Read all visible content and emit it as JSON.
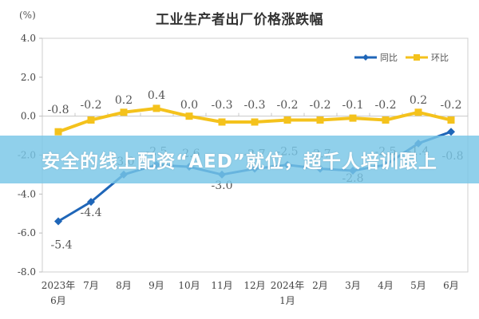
{
  "chart_data": {
    "type": "line",
    "title": "工业生产者出厂价格涨跌幅",
    "ylabel": "(%)",
    "xlabel": "",
    "ylim": [
      -8.0,
      4.0
    ],
    "yticks": [
      "4.0",
      "2.0",
      "0.0",
      "-2.0",
      "-4.0",
      "-6.0",
      "-8.0"
    ],
    "categories": [
      [
        "2023年",
        "6月"
      ],
      [
        "7月"
      ],
      [
        "8月"
      ],
      [
        "9月"
      ],
      [
        "10月"
      ],
      [
        "11月"
      ],
      [
        "12月"
      ],
      [
        "2024年",
        "1月"
      ],
      [
        "2月"
      ],
      [
        "3月"
      ],
      [
        "4月"
      ],
      [
        "5月"
      ],
      [
        "6月"
      ]
    ],
    "series": [
      {
        "name": "同比",
        "color": "#1f66b8",
        "marker": "diamond",
        "values": [
          -5.4,
          -4.4,
          -3.0,
          -2.5,
          -2.6,
          -3.0,
          -2.7,
          -2.5,
          -2.7,
          -2.8,
          -2.5,
          -1.4,
          -0.8
        ],
        "labels": [
          "-5.4",
          "-4.4",
          "-3.0",
          "-2.5",
          "-2.6",
          "-3.0",
          "-2.7",
          "-2.5",
          "-2.7",
          "-2.8",
          "-2.5",
          "-1.4",
          "-0.8"
        ]
      },
      {
        "name": "环比",
        "color": "#f4c21c",
        "marker": "square",
        "values": [
          -0.8,
          -0.2,
          0.2,
          0.4,
          0.0,
          -0.3,
          -0.3,
          -0.2,
          -0.2,
          -0.1,
          -0.2,
          0.2,
          -0.2
        ],
        "labels": [
          "-0.8",
          "-0.2",
          "0.2",
          "0.4",
          "0.0",
          "-0.3",
          "-0.3",
          "-0.2",
          "-0.2",
          "-0.1",
          "-0.2",
          "0.2",
          "-0.2"
        ]
      }
    ],
    "legend_position": "top-right",
    "grid": false
  },
  "header": {
    "title": "工业生产者出厂价格涨跌幅",
    "unit": "(%)"
  },
  "legend": {
    "yoy_label": "同比",
    "mom_label": "环比"
  },
  "banner": {
    "text": "安全的线上配资“AED”就位，超千人培训跟上"
  }
}
